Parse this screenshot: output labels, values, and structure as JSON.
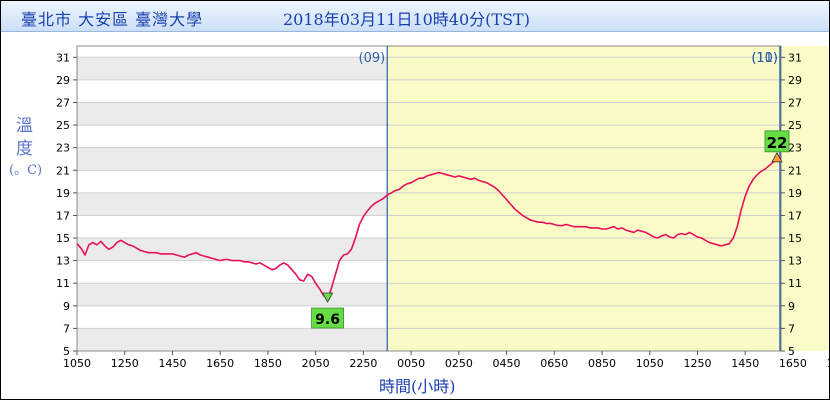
{
  "header": {
    "location": "臺北市 大安區 臺灣大學",
    "timestamp": "2018年03月11日10時40分(TST)"
  },
  "yaxis": {
    "label_line1": "溫",
    "label_line2": "度",
    "unit": "(。C)"
  },
  "xaxis": {
    "label": "時間(小時)"
  },
  "colors": {
    "line": "#e8105a",
    "day_band": "#fbfbc2",
    "stripe": "#ebebeb",
    "marker_fill": "#66dd44",
    "day_line": "#2a5faa",
    "text_blue": "#1a3fb0"
  },
  "chart_data": {
    "type": "line",
    "title": "",
    "xlabel": "時間(小時)",
    "ylabel": "溫度",
    "unit": "°C",
    "ylim": [
      5,
      32
    ],
    "yticks": [
      5,
      7,
      9,
      11,
      13,
      15,
      17,
      19,
      21,
      23,
      25,
      27,
      29,
      31
    ],
    "xticks": [
      "1050",
      "1250",
      "1450",
      "1650",
      "1850",
      "2050",
      "2250",
      "0050",
      "0250",
      "0450",
      "0650",
      "0850",
      "1050",
      "1250",
      "1450",
      "1650",
      "1850",
      "2050",
      "2250",
      "0050",
      "0250",
      "0450",
      "0650",
      "0850"
    ],
    "x_start_label": "1050",
    "x_step_minutes": 10,
    "day_markers": [
      {
        "label": "(09)",
        "at_hour": 24
      },
      {
        "label": "(10)",
        "at_hour": 48
      },
      {
        "label": "(11)",
        "at_hour": 72
      }
    ],
    "highlight_day": "(10)",
    "grid": true,
    "series": [
      {
        "values": [
          14.5,
          14.1,
          13.5,
          14.4,
          14.6,
          14.4,
          14.7,
          14.3,
          14.0,
          14.2,
          14.6,
          14.8,
          14.6,
          14.4,
          14.3,
          14.1,
          13.9,
          13.8,
          13.7,
          13.7,
          13.7,
          13.6,
          13.6,
          13.6,
          13.6,
          13.5,
          13.4,
          13.3,
          13.5,
          13.6,
          13.7,
          13.5,
          13.4,
          13.3,
          13.2,
          13.1,
          13.0,
          13.1,
          13.1,
          13.0,
          13.0,
          13.0,
          12.9,
          12.9,
          12.8,
          12.7,
          12.8,
          12.6,
          12.4,
          12.2,
          12.3,
          12.6,
          12.8,
          12.6,
          12.2,
          11.8,
          11.3,
          11.2,
          11.8,
          11.6,
          11.0,
          10.5,
          9.9,
          9.6,
          10.6,
          11.8,
          13.0,
          13.5,
          13.6,
          14.0,
          15.0,
          16.2,
          16.9,
          17.4,
          17.8,
          18.1,
          18.3,
          18.5,
          18.8,
          19.0,
          19.2,
          19.3,
          19.6,
          19.8,
          19.9,
          20.1,
          20.3,
          20.3,
          20.5,
          20.6,
          20.7,
          20.8,
          20.7,
          20.6,
          20.5,
          20.4,
          20.5,
          20.4,
          20.3,
          20.2,
          20.3,
          20.1,
          20.0,
          19.9,
          19.7,
          19.5,
          19.2,
          18.8,
          18.4,
          18.0,
          17.6,
          17.3,
          17.0,
          16.8,
          16.6,
          16.5,
          16.4,
          16.4,
          16.3,
          16.3,
          16.2,
          16.1,
          16.1,
          16.2,
          16.1,
          16.0,
          16.0,
          16.0,
          16.0,
          15.9,
          15.9,
          15.9,
          15.8,
          15.8,
          15.9,
          16.0,
          15.8,
          15.9,
          15.7,
          15.6,
          15.5,
          15.7,
          15.6,
          15.5,
          15.3,
          15.1,
          15.0,
          15.2,
          15.3,
          15.1,
          15.0,
          15.3,
          15.4,
          15.3,
          15.5,
          15.3,
          15.1,
          15.0,
          14.8,
          14.6,
          14.5,
          14.4,
          14.3,
          14.4,
          14.5,
          15.0,
          16.0,
          17.5,
          18.7,
          19.6,
          20.2,
          20.6,
          20.9,
          21.1,
          21.4,
          21.7,
          22.0,
          22.1
        ]
      }
    ],
    "min_marker": {
      "label": "9.6",
      "value": 9.6
    },
    "max_marker": {
      "label": "22",
      "value": 22.1
    }
  }
}
